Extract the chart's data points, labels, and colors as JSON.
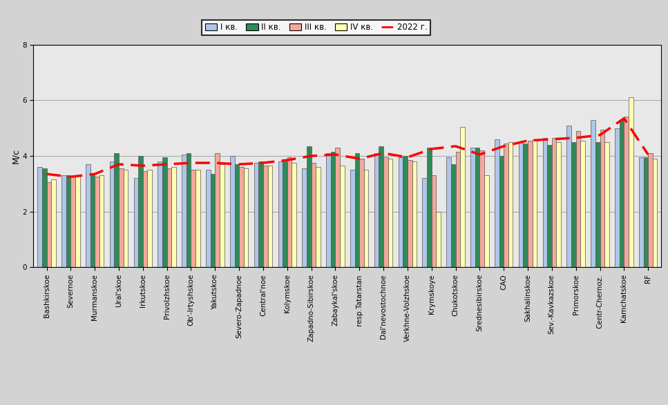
{
  "categories": [
    "Bashkirskoe",
    "Severnoe",
    "Murmanskoe",
    "Ural'skoe",
    "Irkutskoe",
    "Privolzhskoe",
    "Ob'-Irtyshskoe",
    "Yakutskoe",
    "Severo-Zapadnoe",
    "Central'noe",
    "Kolymskoe",
    "Zapadno-Sibirskoe",
    "Zabaykal'skoe",
    "resp.Tatarstan",
    "Dal'nevostochnoe",
    "Verkhne-Volzhskoe",
    "Krymskoye",
    "Chukotskoe",
    "Srednesibirskoe",
    "CAO",
    "Sakhalinskoe",
    "Sev.-Kavkazskoe",
    "Primorskoe",
    "Centr-Chernoz.",
    "Kamchatskoe",
    "RF"
  ],
  "q1": [
    3.6,
    3.3,
    3.7,
    3.8,
    3.2,
    3.8,
    4.05,
    3.5,
    4.0,
    3.75,
    3.8,
    3.55,
    4.1,
    3.5,
    4.1,
    3.95,
    3.2,
    3.95,
    4.3,
    4.6,
    4.5,
    4.65,
    5.1,
    5.3,
    5.0,
    3.95
  ],
  "q2": [
    3.55,
    3.3,
    3.3,
    4.1,
    4.0,
    3.95,
    4.1,
    3.35,
    3.7,
    3.8,
    3.8,
    4.35,
    4.15,
    4.1,
    4.35,
    4.0,
    4.3,
    3.7,
    4.3,
    4.0,
    4.45,
    4.4,
    4.5,
    4.5,
    5.3,
    3.95
  ],
  "q3": [
    3.05,
    3.25,
    3.25,
    3.55,
    3.45,
    3.55,
    3.5,
    4.1,
    3.6,
    3.65,
    3.95,
    3.75,
    4.3,
    3.9,
    3.95,
    3.85,
    3.3,
    4.15,
    4.2,
    4.45,
    4.55,
    4.65,
    4.9,
    4.95,
    5.4,
    4.1
  ],
  "q4": [
    3.15,
    3.3,
    3.3,
    3.5,
    3.5,
    3.6,
    3.5,
    3.7,
    3.55,
    3.65,
    3.75,
    3.6,
    3.65,
    3.5,
    3.9,
    3.8,
    2.0,
    5.05,
    3.3,
    4.5,
    4.6,
    4.5,
    4.55,
    4.5,
    6.1,
    3.9
  ],
  "line_2022": [
    3.35,
    3.25,
    3.35,
    3.7,
    3.65,
    3.7,
    3.75,
    3.75,
    3.7,
    3.75,
    3.85,
    4.0,
    4.05,
    3.9,
    4.1,
    3.95,
    4.25,
    4.35,
    4.05,
    4.35,
    4.55,
    4.6,
    4.65,
    4.75,
    5.35,
    4.05
  ],
  "bar_colors": [
    "#aec6e8",
    "#2e8b57",
    "#f4a89a",
    "#ffffb3"
  ],
  "bar_edge_color": "#555555",
  "line_color": "#ff0000",
  "background_color": "#d3d3d3",
  "plot_bg_color": "#e8e8e8",
  "grid_color": "#aaaaaa",
  "ylabel": "М/с",
  "ylim": [
    0,
    8
  ],
  "yticks": [
    0,
    2,
    4,
    6,
    8
  ],
  "legend_labels": [
    "I кв.",
    "II кв.",
    "III кв.",
    "IV кв.",
    "2022 г."
  ],
  "bar_width": 0.19,
  "fontsize_ticks": 7.5,
  "fontsize_legend": 8.5,
  "fontsize_ylabel": 9
}
